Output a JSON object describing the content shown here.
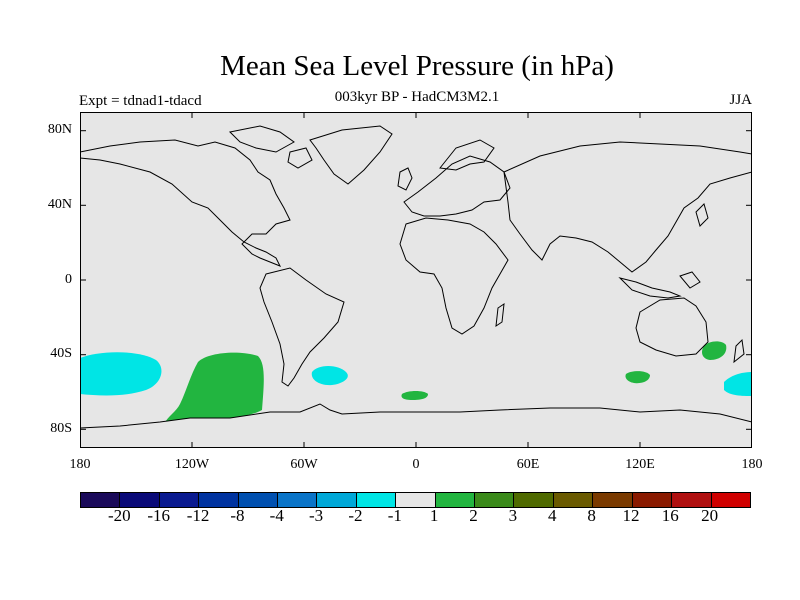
{
  "title": "Mean Sea Level Pressure (in hPa)",
  "subtitle": "003kyr BP - HadCM3M2.1",
  "experiment": "Expt = tdnad1-tdacd",
  "season": "JJA",
  "map": {
    "background_color": "#e6e6e6",
    "lat_ticks": [
      "80N",
      "40N",
      "0",
      "40S",
      "80S"
    ],
    "lon_ticks": [
      "180",
      "120W",
      "60W",
      "0",
      "60E",
      "120E",
      "180"
    ],
    "anomaly_regions": [
      {
        "name": "south-pacific-west",
        "class": "-2 to -1",
        "color": "#00e5e5"
      },
      {
        "name": "southeast-pacific",
        "class": "1 to 2",
        "color": "#22b540"
      },
      {
        "name": "south-atlantic",
        "class": "-2 to -1",
        "color": "#00e5e5"
      },
      {
        "name": "south-of-africa",
        "class": "1 to 2",
        "color": "#22b540"
      },
      {
        "name": "south-indian",
        "class": "1 to 2",
        "color": "#22b540"
      },
      {
        "name": "tasman-sea",
        "class": "1 to 2",
        "color": "#22b540"
      },
      {
        "name": "south-pacific-east-of-nz",
        "class": "-2 to -1",
        "color": "#00e5e5"
      }
    ]
  },
  "colorbar": {
    "colors": [
      "#1a0a5a",
      "#0a0a78",
      "#0a1a90",
      "#0033a0",
      "#0050b0",
      "#0a74c8",
      "#00a8d8",
      "#00e5e5",
      "#e6e6e6",
      "#22b540",
      "#3a8a1a",
      "#4f6a00",
      "#6a5a00",
      "#7a3a00",
      "#8a1a00",
      "#b01010",
      "#d00000"
    ],
    "labels": [
      "-20",
      "-16",
      "-12",
      "-8",
      "-4",
      "-3",
      "-2",
      "-1",
      "1",
      "2",
      "3",
      "4",
      "8",
      "12",
      "16",
      "20"
    ]
  }
}
